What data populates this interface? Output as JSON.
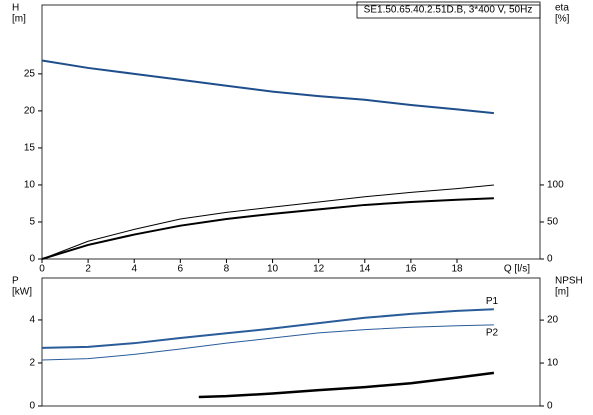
{
  "chart_data": [
    {
      "type": "line",
      "title": "SE1.50.65.40.2.51D.B, 3*400 V, 50Hz",
      "x_label": "Q [l/s]",
      "y_label": [
        "H",
        "[m]"
      ],
      "y2_label": [
        "eta",
        "[%]"
      ],
      "xlim": [
        0,
        21.6
      ],
      "xticks": [
        0,
        2,
        4,
        6,
        8,
        10,
        12,
        14,
        16,
        18
      ],
      "ylim": [
        0,
        34.3
      ],
      "yticks": [
        0,
        5,
        10,
        15,
        20,
        25
      ],
      "y2lim": [
        0,
        343
      ],
      "y2ticks": [
        0,
        50,
        100
      ],
      "grid": false,
      "series": [
        {
          "color": "#1f4e8c",
          "x": [
            0,
            2,
            4,
            6,
            8,
            10,
            12,
            14,
            16,
            18,
            19.6
          ],
          "values": [
            26.8,
            25.8,
            25.0,
            24.2,
            23.4,
            22.6,
            22.0,
            21.5,
            20.8,
            20.2,
            19.7
          ]
        },
        {
          "color": "#000000",
          "axis": "y2",
          "x": [
            0,
            2,
            4,
            6,
            8,
            10,
            12,
            14,
            16,
            18,
            19.6
          ],
          "values": [
            0,
            24,
            40,
            54,
            63,
            70,
            77,
            84,
            90,
            95,
            100
          ]
        },
        {
          "color": "#000000",
          "axis": "y2",
          "x": [
            0,
            2,
            4,
            6,
            8,
            10,
            12,
            14,
            16,
            18,
            19.6
          ],
          "values": [
            0,
            19,
            33,
            45,
            54,
            61,
            67,
            73,
            77,
            80,
            82
          ]
        }
      ]
    },
    {
      "type": "line",
      "y_label": [
        "P",
        "[kW]"
      ],
      "y2_label": [
        "NPSH",
        "[m]"
      ],
      "xlim": [
        0,
        21.6
      ],
      "ylim": [
        0,
        5.95
      ],
      "yticks": [
        0,
        2,
        4
      ],
      "y2lim": [
        0,
        29.8
      ],
      "y2ticks": [
        0,
        10,
        20
      ],
      "grid": false,
      "series": [
        {
          "name": "P1",
          "color": "#2a5c9a",
          "x": [
            0,
            2,
            4,
            6,
            8,
            10,
            12,
            14,
            16,
            18,
            19.6
          ],
          "values": [
            2.7,
            2.75,
            2.92,
            3.16,
            3.38,
            3.6,
            3.85,
            4.1,
            4.28,
            4.42,
            4.5
          ]
        },
        {
          "name": "P2",
          "color": "#2a5c9a",
          "x": [
            0,
            2,
            4,
            6,
            8,
            10,
            12,
            14,
            16,
            18,
            19.6
          ],
          "values": [
            2.14,
            2.2,
            2.4,
            2.65,
            2.92,
            3.16,
            3.4,
            3.55,
            3.66,
            3.73,
            3.77
          ]
        },
        {
          "color": "#000000",
          "axis": "y2",
          "x": [
            6.8,
            8,
            10,
            12,
            14,
            16,
            18,
            19.6
          ],
          "values": [
            2.1,
            2.3,
            2.9,
            3.7,
            4.4,
            5.3,
            6.6,
            7.7
          ]
        }
      ]
    }
  ]
}
